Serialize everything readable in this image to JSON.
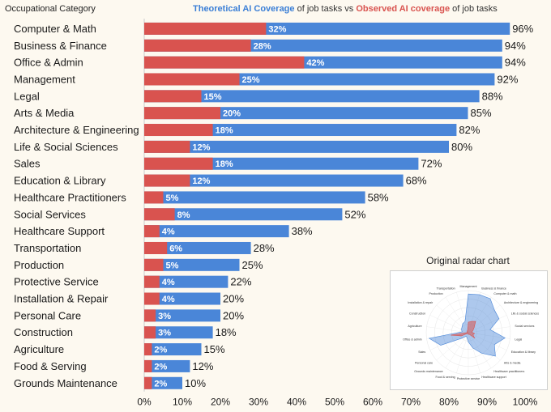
{
  "header": {
    "column_label": "Occupational Category",
    "title_blue": "Theoretical AI Coverage",
    "title_mid": " of job tasks vs ",
    "title_red": "Observed AI coverage",
    "title_end": " of job tasks"
  },
  "colors": {
    "theoretical": "#4a86d8",
    "observed": "#d9534f",
    "background": "#fdf9f0"
  },
  "chart_data": {
    "type": "bar",
    "orientation": "horizontal",
    "title": "Theoretical AI Coverage of job tasks vs Observed AI coverage of job tasks",
    "categories": [
      "Computer & Math",
      "Business & Finance",
      "Office & Admin",
      "Management",
      "Legal",
      "Arts & Media",
      "Architecture & Engineering",
      "Life & Social Sciences",
      "Sales",
      "Education & Library",
      "Healthcare Practitioners",
      "Social Services",
      "Healthcare Support",
      "Transportation",
      "Production",
      "Protective Service",
      "Installation & Repair",
      "Personal Care",
      "Construction",
      "Agriculture",
      "Food & Serving",
      "Grounds Maintenance"
    ],
    "series": [
      {
        "name": "Theoretical AI Coverage",
        "values": [
          96,
          94,
          94,
          92,
          88,
          85,
          82,
          80,
          72,
          68,
          58,
          52,
          38,
          28,
          25,
          22,
          20,
          20,
          18,
          15,
          12,
          10
        ]
      },
      {
        "name": "Observed AI coverage",
        "values": [
          32,
          28,
          42,
          25,
          15,
          20,
          18,
          12,
          18,
          12,
          5,
          8,
          4,
          6,
          5,
          4,
          4,
          3,
          3,
          2,
          2,
          2
        ]
      }
    ],
    "xticks": [
      "0%",
      "10%",
      "20%",
      "30%",
      "40%",
      "50%",
      "60%",
      "70%",
      "80%",
      "90%",
      "100%"
    ],
    "xlim": [
      0,
      100
    ],
    "ylabel": "Occupational Category",
    "value_suffix": "%"
  },
  "inset": {
    "title": "Original radar chart",
    "radar_labels": [
      "Management",
      "Business & finance",
      "Computer & math",
      "Architecture & engineering",
      "Life & social sciences",
      "Social services",
      "Legal",
      "Education & library",
      "Arts & media",
      "Healthcare practitioners",
      "Healthcare support",
      "Protective service",
      "Food & serving",
      "Grounds maintenance",
      "Personal care",
      "Sales",
      "Office & admin",
      "Agriculture",
      "Construction",
      "Installation & repair",
      "Production",
      "Transportation"
    ],
    "radar_theoretical": [
      92,
      94,
      96,
      82,
      80,
      52,
      88,
      68,
      85,
      58,
      38,
      22,
      12,
      10,
      20,
      72,
      94,
      15,
      18,
      20,
      25,
      28
    ],
    "radar_observed": [
      25,
      28,
      32,
      18,
      12,
      8,
      15,
      12,
      20,
      5,
      4,
      4,
      2,
      2,
      3,
      18,
      42,
      2,
      3,
      4,
      5,
      6
    ]
  }
}
